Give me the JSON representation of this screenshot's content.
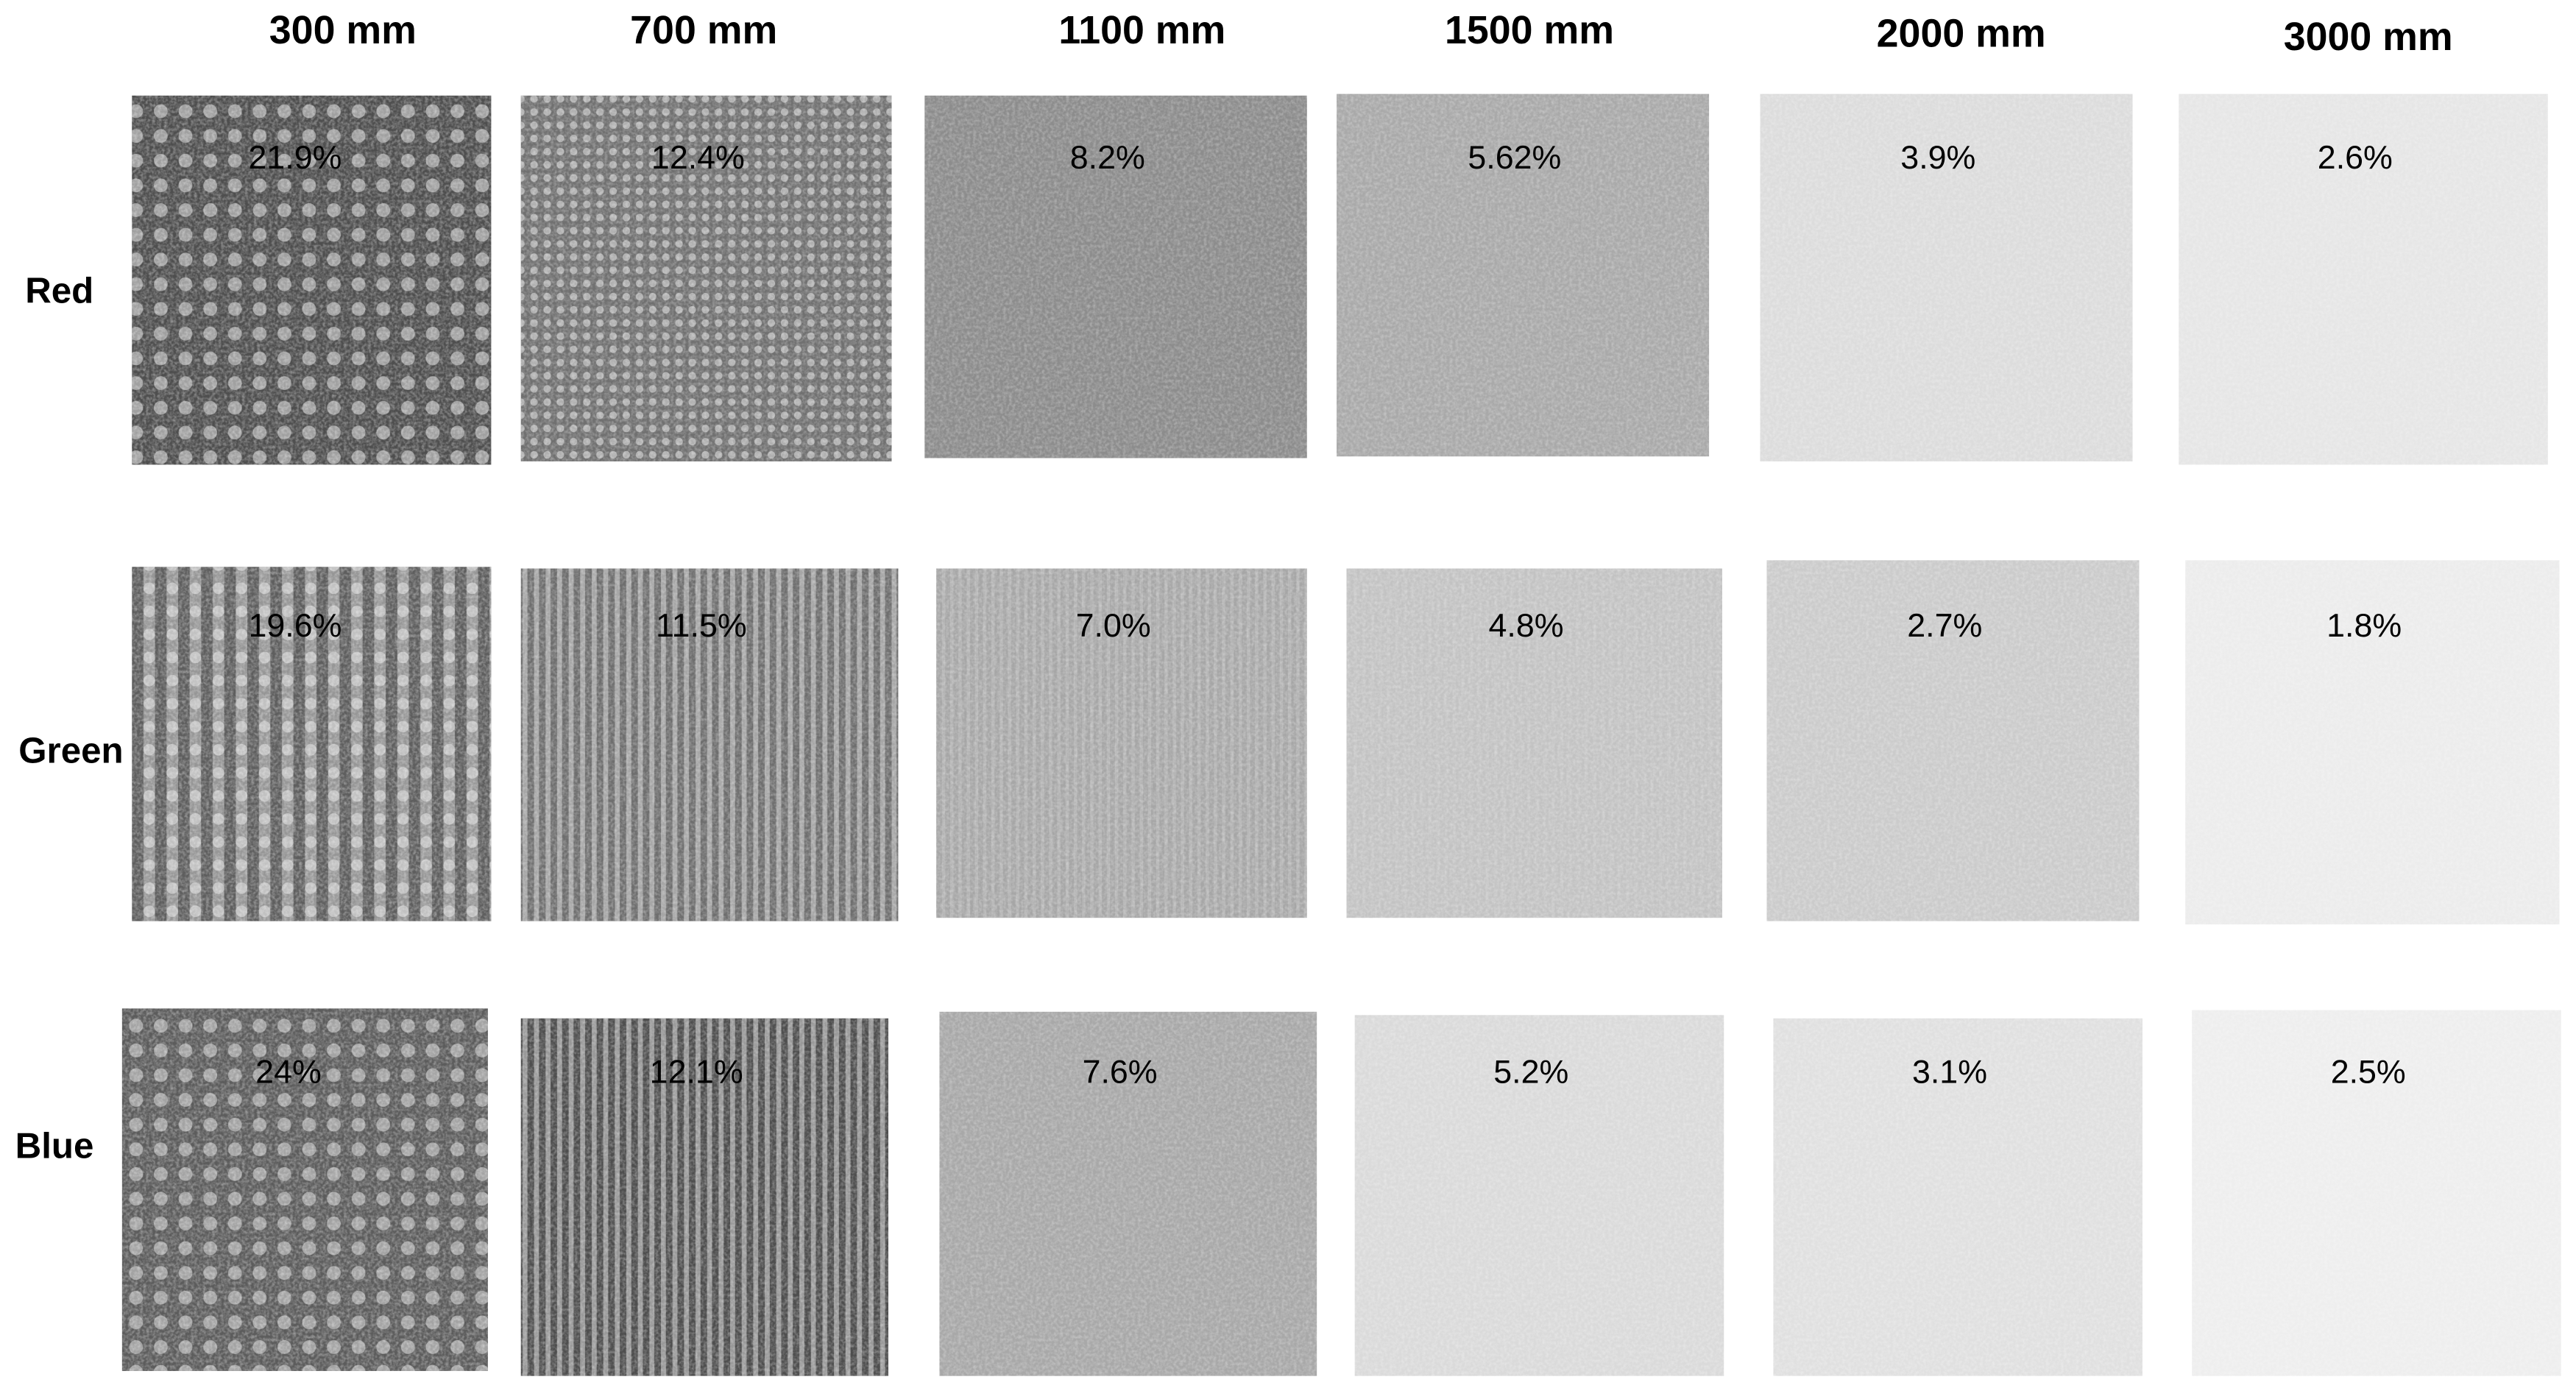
{
  "columns": [
    "300 mm",
    "700 mm",
    "1100 mm",
    "1500 mm",
    "2000 mm",
    "3000 mm"
  ],
  "rows": [
    {
      "label": "Red",
      "cells": [
        "21.9%",
        "12.4%",
        "8.2%",
        "5.62%",
        "3.9%",
        "2.6%"
      ]
    },
    {
      "label": "Green",
      "cells": [
        "19.6%",
        "11.5%",
        "7.0%",
        "4.8%",
        "2.7%",
        "1.8%"
      ]
    },
    {
      "label": "Blue",
      "cells": [
        "24%",
        "12.1%",
        "7.6%",
        "5.2%",
        "3.1%",
        "2.5%"
      ]
    }
  ]
}
